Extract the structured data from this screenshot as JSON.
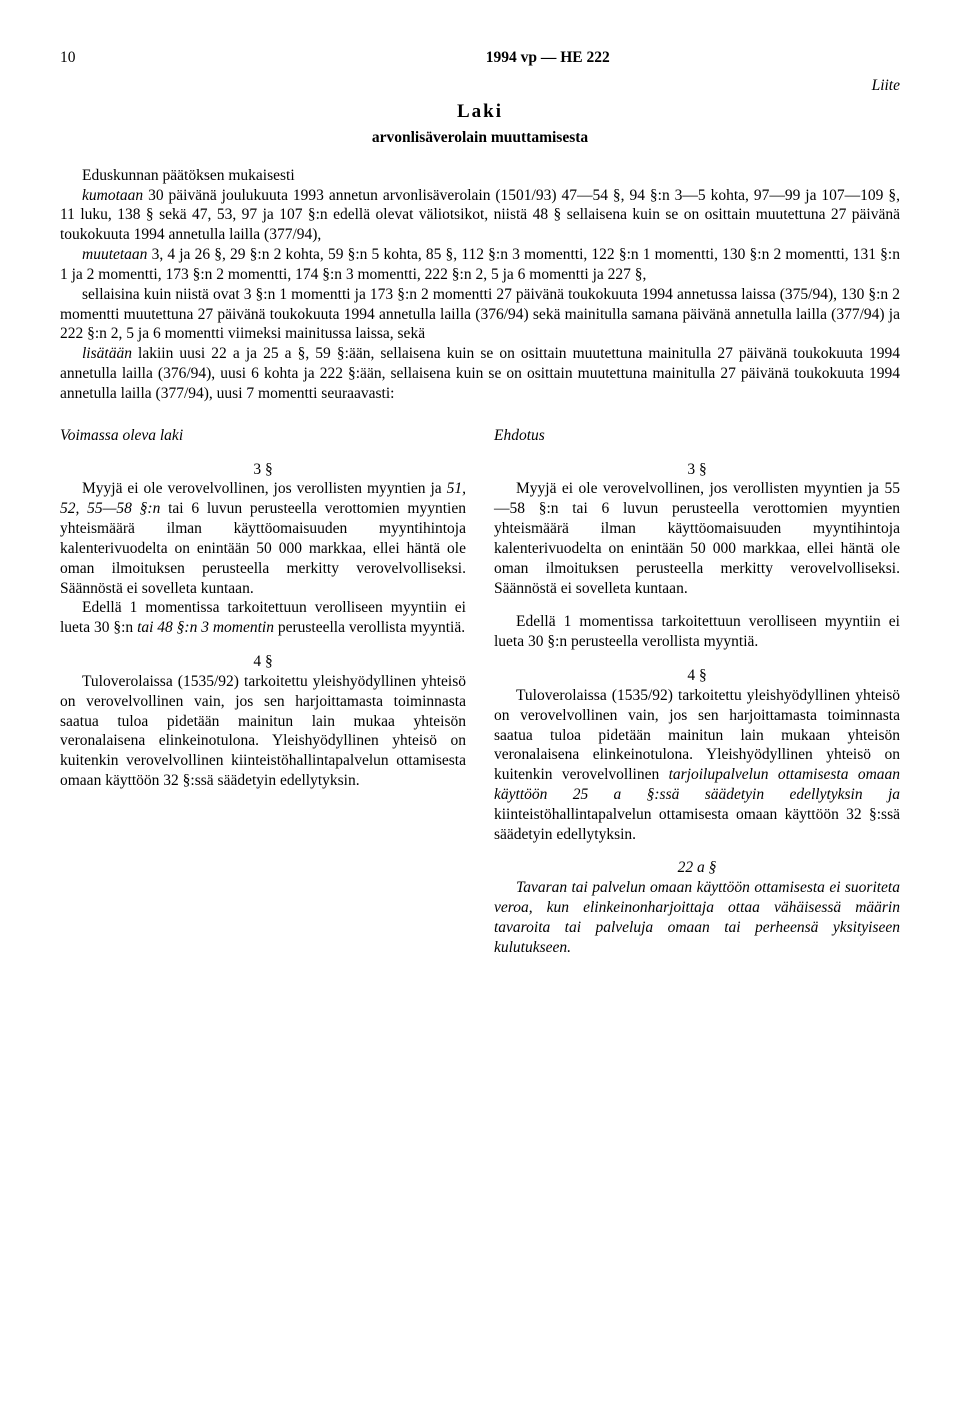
{
  "header": {
    "page_number": "10",
    "doc_ref": "1994 vp — HE 222",
    "attachment_label": "Liite"
  },
  "title": {
    "main": "Laki",
    "subtitle": "arvonlisäverolain muuttamisesta"
  },
  "intro": {
    "p1": "Eduskunnan päätöksen mukaisesti",
    "p2_before_italic": "",
    "p2_italic1": "kumotaan",
    "p2_after1": " 30 päivänä joulukuuta 1993 annetun arvonlisäverolain (1501/93) 47—54 §, 94 §:n 3—5 kohta, 97—99 ja 107—109 §, 11 luku, 138 § sekä 47, 53, 97 ja 107 §:n edellä olevat väliotsikot, niistä 48 § sellaisena kuin se on osittain muutettuna 27 päivänä toukokuuta 1994 annetulla lailla (377/94),",
    "p3_italic": "muutetaan",
    "p3_rest": " 3, 4 ja 26 §, 29 §:n 2 kohta, 59 §:n 5 kohta, 85 §, 112 §:n 3 momentti, 122 §:n 1 momentti, 130 §:n 2 momentti, 131 §:n 1 ja 2 momentti, 173 §:n 2 momentti, 174 §:n 3 momentti, 222 §:n 2, 5 ja 6 momentti ja 227 §,",
    "p4": "sellaisina kuin niistä ovat 3 §:n 1 momentti ja 173 §:n 2 momentti 27 päivänä toukokuuta 1994 annetussa laissa (375/94), 130 §:n 2 momentti muutettuna 27 päivänä toukokuuta 1994 annetulla lailla (376/94) sekä mainitulla samana päivänä annetulla lailla (377/94) ja 222 §:n 2, 5 ja 6 momentti viimeksi mainitussa laissa, sekä",
    "p5_italic": "lisätään",
    "p5_rest": " lakiin uusi 22 a ja 25 a §, 59 §:ään, sellaisena kuin se on osittain muutettuna mainitulla 27 päivänä toukokuuta 1994 annetulla lailla (376/94), uusi 6 kohta ja 222 §:ään, sellaisena kuin se on osittain muutettuna mainitulla 27 päivänä toukokuuta 1994 annetulla lailla (377/94), uusi 7 momentti seuraavasti:"
  },
  "left": {
    "heading": "Voimassa oleva laki",
    "s3_num": "3 §",
    "s3_p1a": "Myyjä ei ole verovelvollinen, jos verollisten myyntien ja ",
    "s3_p1_ital": "51, 52, 55—58 §:n",
    "s3_p1b": " tai 6 luvun perusteella verottomien myyntien yhteismäärä ilman käyttöomaisuuden myyntihintoja kalenterivuodelta on enintään 50 000 markkaa, ellei häntä ole oman ilmoituksen perusteella merkitty verovelvolliseksi. Säännöstä ei sovelleta kuntaan.",
    "s3_p2a": "Edellä 1 momentissa tarkoitettuun verolliseen myyntiin ei lueta 30 §:n ",
    "s3_p2_ital": "tai 48 §:n 3 momentin",
    "s3_p2b": " perusteella verollista myyntiä.",
    "s4_num": "4 §",
    "s4_p1": "Tuloverolaissa (1535/92) tarkoitettu yleishyödyllinen yhteisö on verovelvollinen vain, jos sen harjoittamasta toiminnasta saatua tuloa pidetään mainitun lain mukaa yhteisön veronalaisena elinkeinotulona. Yleishyödyllinen yhteisö on kuitenkin verovelvollinen kiinteistöhallintapalvelun ottamisesta omaan käyttöön 32 §:ssä säädetyin edellytyksin."
  },
  "right": {
    "heading": "Ehdotus",
    "s3_num": "3 §",
    "s3_p1": "Myyjä ei ole verovelvollinen, jos verollisten myyntien ja 55—58 §:n tai 6 luvun perusteella verottomien myyntien yhteismäärä ilman käyttöomaisuuden myyntihintoja kalenterivuodelta on enintään 50 000 markkaa, ellei häntä ole oman ilmoituksen perusteella merkitty verovelvolliseksi. Säännöstä ei sovelleta kuntaan.",
    "s3_p2": "Edellä 1 momentissa tarkoitettuun verolliseen myyntiin ei lueta 30 §:n perusteella verollista myyntiä.",
    "s4_num": "4 §",
    "s4_p1a": "Tuloverolaissa (1535/92) tarkoitettu yleishyödyllinen yhteisö on verovelvollinen vain, jos sen harjoittamasta toiminnasta saatua tuloa pidetään mainitun lain mukaan yhteisön veronalaisena elinkeinotulona. Yleishyödyllinen yhteisö on kuitenkin verovelvollinen ",
    "s4_p1_ital": "tarjoilupalvelun ottamisesta omaan käyttöön 25 a §:ssä säädetyin edellytyksin ja",
    "s4_p1b": " kiinteistöhallintapalvelun ottamisesta omaan käyttöön 32 §:ssä säädetyin edellytyksin.",
    "s22a_num": "22 a §",
    "s22a_p1": "Tavaran tai palvelun omaan käyttöön ottamisesta ei suoriteta veroa, kun elinkeinonharjoittaja ottaa vähäisessä määrin tavaroita tai palveluja omaan tai perheensä yksityiseen kulutukseen."
  }
}
